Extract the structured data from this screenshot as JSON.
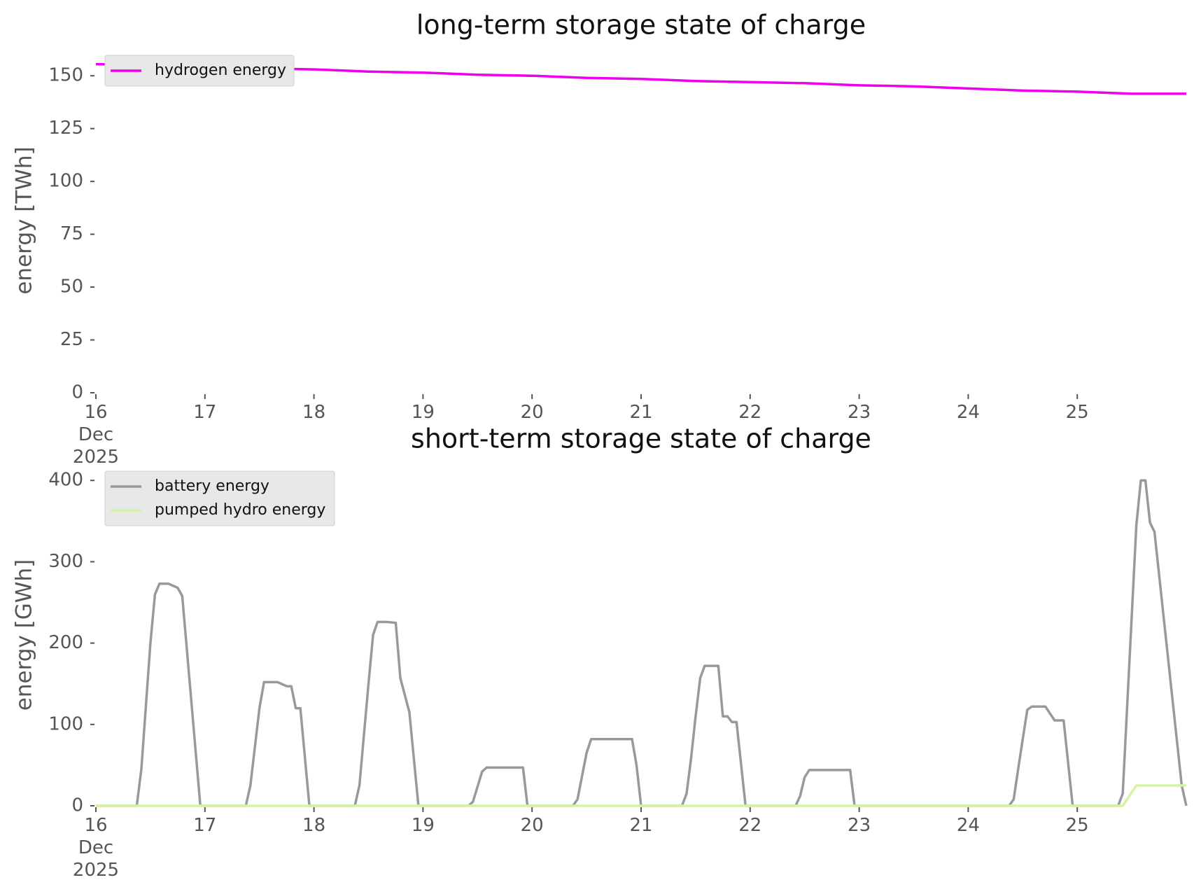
{
  "chart_data": [
    {
      "type": "line",
      "title": "long-term storage state of charge",
      "ylabel": "energy [TWh]",
      "x": [
        16,
        16.5,
        17,
        17.5,
        18,
        18.5,
        19,
        19.5,
        20,
        20.5,
        21,
        21.5,
        22,
        22.5,
        23,
        23.5,
        24,
        24.5,
        25,
        25.5,
        26
      ],
      "series": [
        {
          "name": "hydrogen energy",
          "color": "#ee00ee",
          "values": [
            155.5,
            155,
            154,
            153.5,
            153,
            152,
            151.5,
            150.5,
            150,
            149,
            148.5,
            147.5,
            147,
            146.5,
            145.5,
            145,
            144,
            143,
            142.5,
            141.5,
            141.5
          ]
        }
      ],
      "xlim": [
        16,
        26
      ],
      "xticks": [
        {
          "value": 16,
          "label": "16\nDec\n2025"
        },
        17,
        18,
        19,
        20,
        21,
        22,
        23,
        24,
        25
      ],
      "ylim": [
        0,
        163
      ],
      "yticks": [
        0,
        25,
        50,
        75,
        100,
        125,
        150
      ],
      "legend": "upper left"
    },
    {
      "type": "line",
      "title": "short-term storage state of charge",
      "ylabel": "energy [GWh]",
      "x": [
        16,
        16.375,
        16.417,
        16.5,
        16.542,
        16.583,
        16.667,
        16.75,
        16.792,
        16.958,
        17.375,
        17.417,
        17.5,
        17.542,
        17.667,
        17.75,
        17.792,
        17.833,
        17.875,
        17.958,
        18.375,
        18.417,
        18.5,
        18.542,
        18.583,
        18.667,
        18.75,
        18.792,
        18.875,
        18.958,
        19.417,
        19.458,
        19.542,
        19.583,
        19.917,
        19.958,
        20.375,
        20.417,
        20.5,
        20.542,
        20.917,
        20.958,
        21,
        21.375,
        21.417,
        21.458,
        21.5,
        21.542,
        21.583,
        21.708,
        21.75,
        21.792,
        21.833,
        21.875,
        21.958,
        22.417,
        22.458,
        22.5,
        22.542,
        22.917,
        22.958,
        24.375,
        24.417,
        24.458,
        24.5,
        24.542,
        24.583,
        24.708,
        24.792,
        24.875,
        24.958,
        25.375,
        25.417,
        25.542,
        25.583,
        25.625,
        25.667,
        25.708,
        25.958,
        26
      ],
      "series": [
        {
          "name": "battery energy",
          "color": "#999999",
          "values": [
            0,
            0,
            45,
            200,
            260,
            273,
            273,
            268,
            258,
            0,
            0,
            25,
            120,
            152,
            152,
            147,
            147,
            120,
            120,
            0,
            0,
            25,
            150,
            210,
            226,
            226,
            225,
            157,
            115,
            0,
            0,
            5,
            42,
            47,
            47,
            0,
            0,
            8,
            65,
            82,
            82,
            50,
            0,
            0,
            15,
            58,
            110,
            157,
            172,
            172,
            110,
            110,
            103,
            103,
            0,
            0,
            12,
            35,
            44,
            44,
            0,
            0,
            8,
            45,
            82,
            118,
            122,
            122,
            105,
            105,
            0,
            0,
            15,
            345,
            400,
            400,
            348,
            337,
            25,
            0
          ]
        },
        {
          "name": "pumped hydro energy",
          "color": "#d4f5a0",
          "values": [
            0,
            0,
            0,
            0,
            0,
            0,
            0,
            0,
            0,
            0,
            0,
            0,
            0,
            0,
            0,
            0,
            0,
            0,
            0,
            0,
            0,
            0,
            0,
            0,
            0,
            0,
            0,
            0,
            0,
            0,
            0,
            0,
            0,
            0,
            0,
            0,
            0,
            0,
            0,
            0,
            0,
            0,
            0,
            0,
            0,
            0,
            0,
            0,
            0,
            0,
            0,
            0,
            0,
            0,
            0,
            0,
            0,
            0,
            0,
            0,
            0,
            0,
            0,
            0,
            0,
            0,
            0,
            0,
            0,
            0,
            0,
            0,
            0,
            25,
            25,
            25,
            25,
            25,
            25,
            25
          ]
        }
      ],
      "xlim": [
        16,
        26
      ],
      "xticks": [
        {
          "value": 16,
          "label": "16\nDec\n2025"
        },
        17,
        18,
        19,
        20,
        21,
        22,
        23,
        24,
        25
      ],
      "ylim": [
        0,
        420
      ],
      "yticks": [
        0,
        100,
        200,
        300,
        400
      ],
      "legend": "upper left"
    }
  ]
}
